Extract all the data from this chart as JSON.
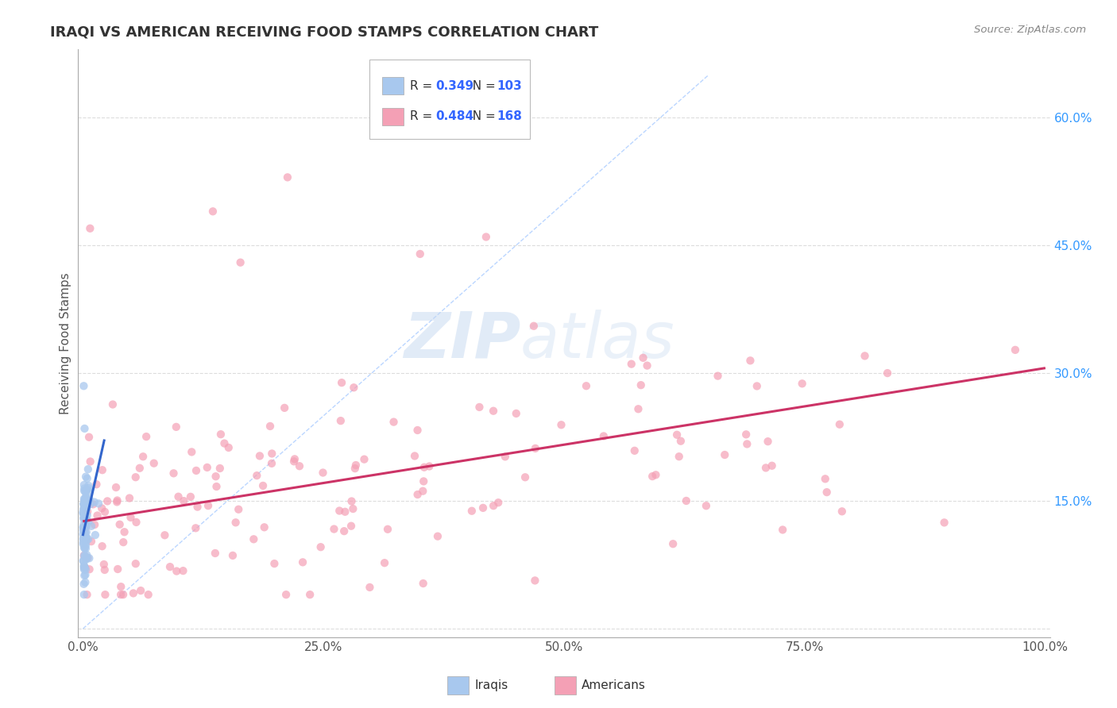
{
  "title": "IRAQI VS AMERICAN RECEIVING FOOD STAMPS CORRELATION CHART",
  "source": "Source: ZipAtlas.com",
  "ylabel": "Receiving Food Stamps",
  "watermark_zip": "ZIP",
  "watermark_atlas": "atlas",
  "iraqis_R": 0.349,
  "iraqis_N": 103,
  "iraqis_scatter_color": "#a8c8ee",
  "iraqis_line_color": "#3366cc",
  "americans_R": 0.484,
  "americans_N": 168,
  "americans_scatter_color": "#f4a0b5",
  "americans_line_color": "#cc3366",
  "diagonal_color": "#aaccff",
  "background_color": "#ffffff",
  "grid_color": "#dddddd",
  "title_color": "#333333",
  "source_color": "#888888",
  "right_axis_color": "#3399ff",
  "legend_text_R_color": "#333333",
  "legend_value_color": "#3366ff",
  "legend_N_value_color": "#3366ff",
  "scatter_size_iraqis": 55,
  "scatter_size_americans": 55,
  "iraqis_alpha": 0.75,
  "americans_alpha": 0.7,
  "xlim": [
    -0.005,
    1.005
  ],
  "ylim": [
    -0.01,
    0.68
  ],
  "ytick_positions": [
    0.0,
    0.15,
    0.3,
    0.45,
    0.6
  ],
  "ytick_labels": [
    "",
    "15.0%",
    "30.0%",
    "45.0%",
    "60.0%"
  ],
  "xtick_positions": [
    0.0,
    0.25,
    0.5,
    0.75,
    1.0
  ],
  "xtick_labels": [
    "0.0%",
    "25.0%",
    "50.0%",
    "75.0%",
    "100.0%"
  ]
}
